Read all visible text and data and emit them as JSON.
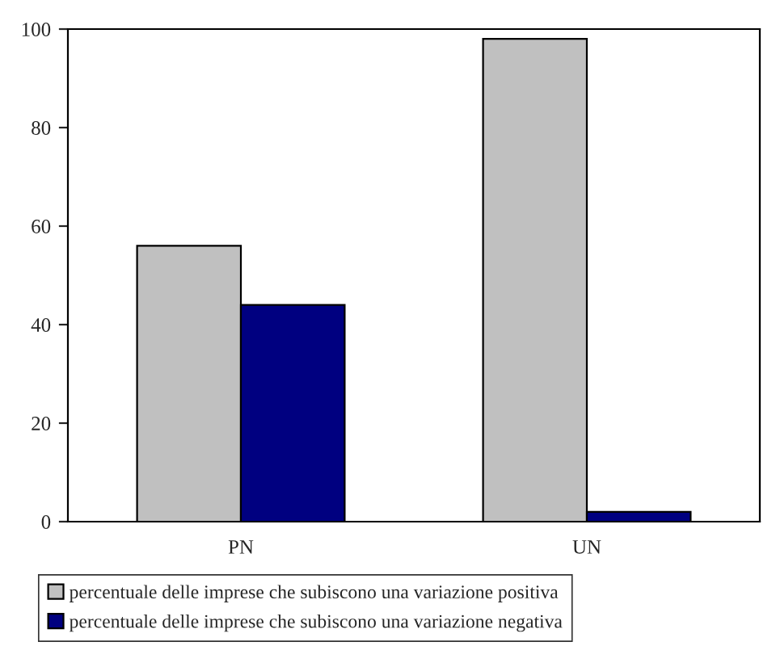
{
  "chart_data": {
    "type": "bar",
    "categories": [
      "PN",
      "UN"
    ],
    "series": [
      {
        "name": "percentuale delle imprese che subiscono una variazione positiva",
        "color": "#c0c0c0",
        "values": [
          56,
          98
        ]
      },
      {
        "name": "percentuale delle imprese che subiscono una variazione negativa",
        "color": "#000080",
        "values": [
          44,
          2
        ]
      }
    ],
    "ylim": [
      0,
      100
    ],
    "yticks": [
      0,
      20,
      40,
      60,
      80,
      100
    ],
    "grid": false,
    "legend": "bottom"
  }
}
